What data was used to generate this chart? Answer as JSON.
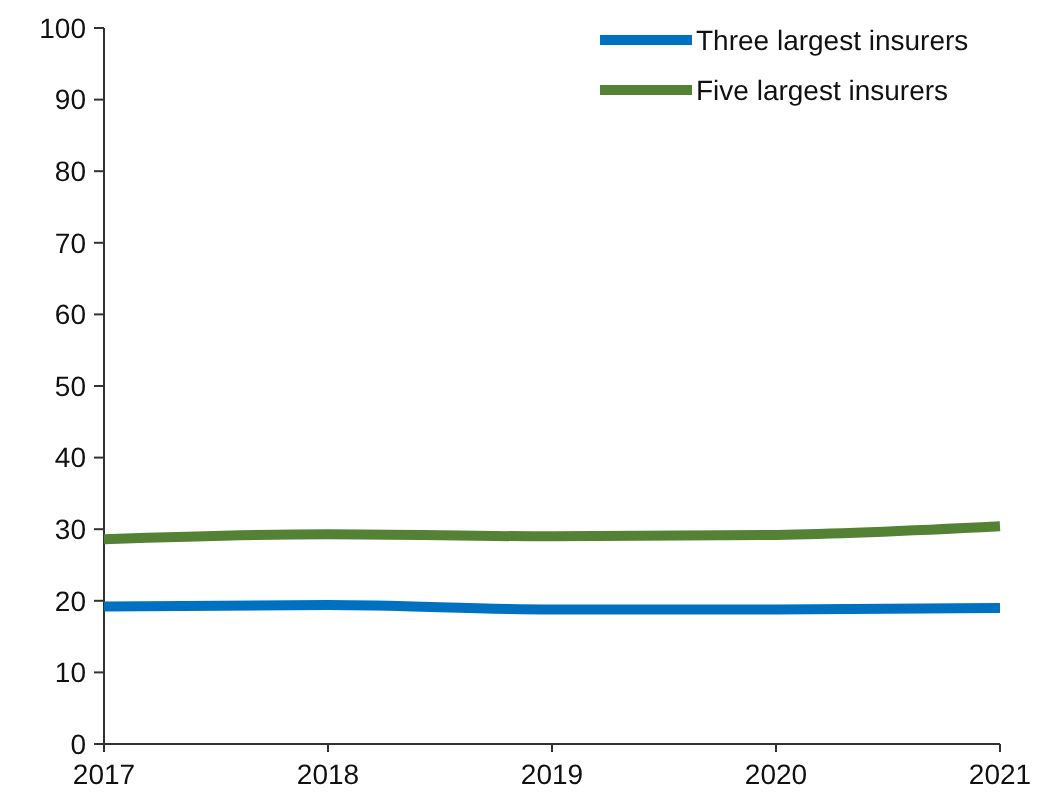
{
  "chart_data": {
    "type": "line",
    "x": [
      2017,
      2018,
      2019,
      2020,
      2021
    ],
    "xlim": [
      2017,
      2021
    ],
    "xticks": [
      2017,
      2018,
      2019,
      2020,
      2021
    ],
    "ylim": [
      0,
      100
    ],
    "yticks": [
      0,
      10,
      20,
      30,
      40,
      50,
      60,
      70,
      80,
      90,
      100
    ],
    "series": [
      {
        "name": "Three largest insurers",
        "color": "#0070c0",
        "values": [
          19.2,
          19.4,
          18.8,
          18.8,
          19.0
        ]
      },
      {
        "name": "Five largest insurers",
        "color": "#548235",
        "values": [
          28.6,
          29.3,
          29.0,
          29.2,
          30.4
        ]
      }
    ],
    "grid": false,
    "legend": "top right",
    "marker": "none",
    "line_style": "solid"
  }
}
